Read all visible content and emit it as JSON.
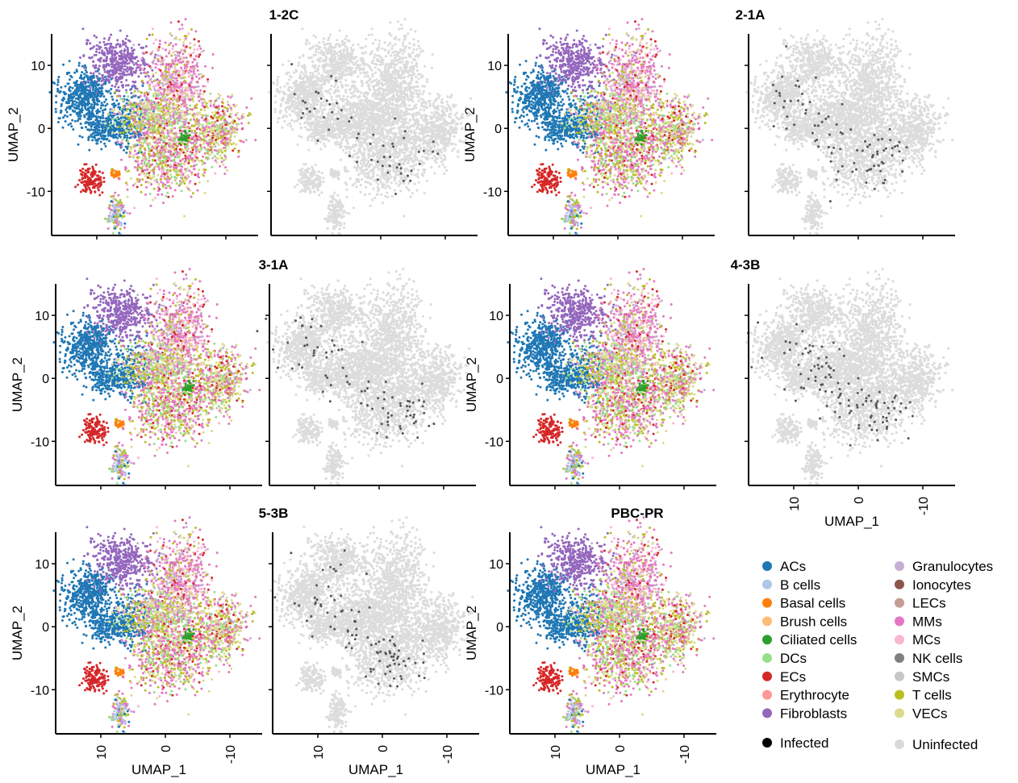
{
  "chart_data": {
    "type": "scatter",
    "x_label": "UMAP_1",
    "y_label": "UMAP_2",
    "x_ticks": [
      "10",
      "0",
      "-10"
    ],
    "y_ticks": [
      "10",
      "0",
      "-10"
    ],
    "xlim": [
      17,
      -15
    ],
    "ylim": [
      -17,
      15
    ],
    "panels": [
      {
        "title": "1-2C",
        "infected_count": 60
      },
      {
        "title": "2-1A",
        "infected_count": 90
      },
      {
        "title": "3-1A",
        "infected_count": 85
      },
      {
        "title": "4-3B",
        "infected_count": 110
      },
      {
        "title": "5-3B",
        "infected_count": 95
      },
      {
        "title": "PBC-PR",
        "infected_count": null
      }
    ],
    "cell_types": [
      {
        "name": "ACs",
        "color": "#1f77b4"
      },
      {
        "name": "B cells",
        "color": "#aec7e8"
      },
      {
        "name": "Basal cells",
        "color": "#ff7f0e"
      },
      {
        "name": "Brush cells",
        "color": "#ffbb78"
      },
      {
        "name": "Ciliated cells",
        "color": "#2ca02c"
      },
      {
        "name": "DCs",
        "color": "#98df8a"
      },
      {
        "name": "ECs",
        "color": "#d62728"
      },
      {
        "name": "Erythrocyte",
        "color": "#ff9896"
      },
      {
        "name": "Fibroblasts",
        "color": "#9467bd"
      },
      {
        "name": "Granulocytes",
        "color": "#c5b0d5"
      },
      {
        "name": "Ionocytes",
        "color": "#8c564b"
      },
      {
        "name": "LECs",
        "color": "#c49c94"
      },
      {
        "name": "MMs",
        "color": "#e377c2"
      },
      {
        "name": "MCs",
        "color": "#f7b6d2"
      },
      {
        "name": "NK cells",
        "color": "#7f7f7f"
      },
      {
        "name": "SMCs",
        "color": "#c7c7c7"
      },
      {
        "name": "T cells",
        "color": "#bcbd22"
      },
      {
        "name": "VECs",
        "color": "#dbdb8d"
      }
    ],
    "infection_legend": [
      {
        "name": "Infected",
        "color": "#000000"
      },
      {
        "name": "Uninfected",
        "color": "#d9d9d9"
      }
    ]
  }
}
